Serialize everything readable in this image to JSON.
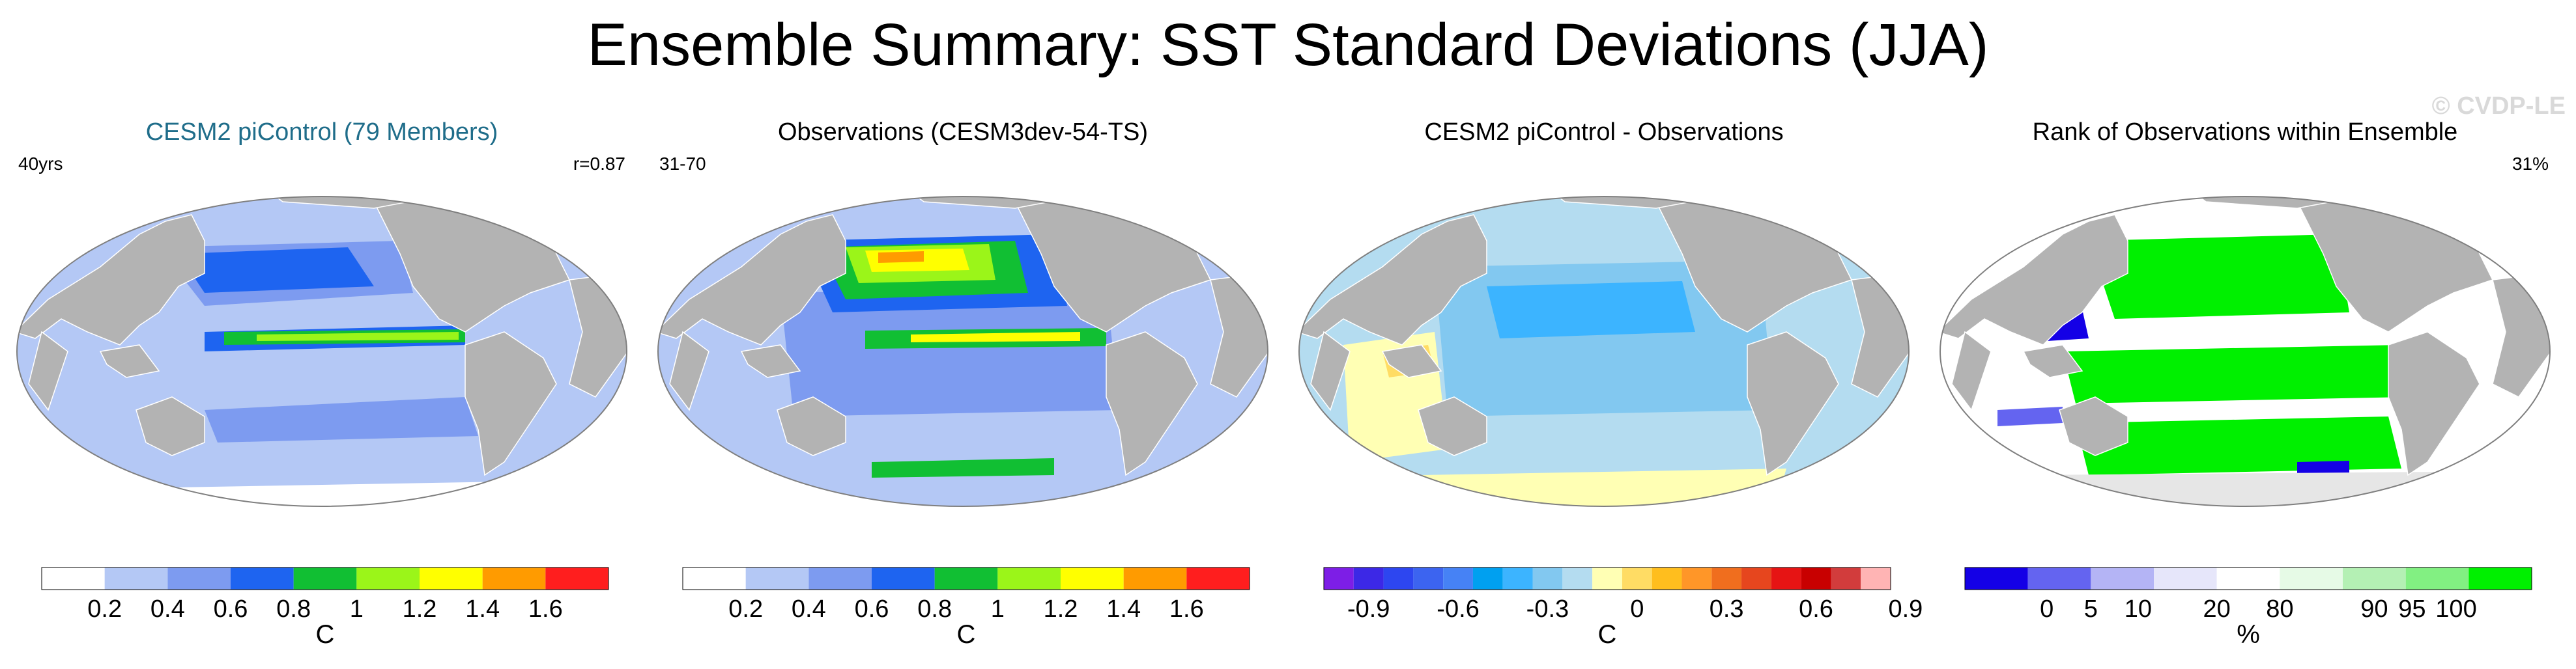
{
  "figure": {
    "title": "Ensemble Summary: SST Standard Deviations (JJA)",
    "watermark": "© CVDP-LE"
  },
  "colors": {
    "land": "#b3b3b3",
    "ocean_outline": "#7f7f7f",
    "title_teal": "#1f6d8a"
  },
  "panels": [
    {
      "id": "ensemble",
      "title": "CESM2 piControl (79 Members)",
      "title_color": "#1f6d8a",
      "left_label": "40yrs",
      "right_label": "r=0.87",
      "field": "std",
      "colorbar": {
        "colors": [
          "#ffffff",
          "#b4c8f5",
          "#7d9bf0",
          "#1e64f0",
          "#11bf33",
          "#9bf519",
          "#ffff00",
          "#ff9b00",
          "#ff1e1e"
        ],
        "labels": [
          "0.2",
          "0.4",
          "0.6",
          "0.8",
          "1",
          "1.2",
          "1.4",
          "1.6"
        ],
        "unit": "C"
      }
    },
    {
      "id": "observations",
      "title": "Observations (CESM3dev-54-TS)",
      "title_color": "#000000",
      "left_label": "31-70",
      "right_label": "",
      "field": "obs",
      "colorbar": {
        "colors": [
          "#ffffff",
          "#b4c8f5",
          "#7d9bf0",
          "#1e64f0",
          "#11bf33",
          "#9bf519",
          "#ffff00",
          "#ff9b00",
          "#ff1e1e"
        ],
        "labels": [
          "0.2",
          "0.4",
          "0.6",
          "0.8",
          "1",
          "1.2",
          "1.4",
          "1.6"
        ],
        "unit": "C"
      }
    },
    {
      "id": "difference",
      "title": "CESM2 piControl - Observations",
      "title_color": "#000000",
      "left_label": "",
      "right_label": "",
      "field": "diff",
      "colorbar": {
        "colors": [
          "#7d1ee6",
          "#3c28e6",
          "#2d46f0",
          "#3c64f0",
          "#4682f5",
          "#00a0f0",
          "#3cb4ff",
          "#82c8f0",
          "#b4dcf0",
          "#ffffb4",
          "#ffdc64",
          "#ffbe1e",
          "#ff9628",
          "#f06e1e",
          "#e6461e",
          "#e61414",
          "#c80000",
          "#d23c3c",
          "#ffb4b4"
        ],
        "labels": [
          "-0.9",
          "-0.6",
          "-0.3",
          "0",
          "0.3",
          "0.6",
          "0.9"
        ],
        "label_positions": [
          1.5,
          4.5,
          7.5,
          10.5,
          13.5,
          16.5,
          19.5
        ],
        "unit": "C"
      }
    },
    {
      "id": "rank",
      "title": "Rank of Observations within Ensemble",
      "title_color": "#000000",
      "left_label": "",
      "right_label": "31%",
      "field": "rank",
      "colorbar": {
        "colors": [
          "#1400e6",
          "#6464f0",
          "#b4b4f5",
          "#e6e6fa",
          "#ffffff",
          "#e6fae6",
          "#b4f0b4",
          "#82f082",
          "#00f000"
        ],
        "labels": [
          "0",
          "5",
          "10",
          "20",
          "80",
          "90",
          "95",
          "100"
        ],
        "label_positions": [
          1.3,
          2.0,
          2.75,
          4.0,
          5.0,
          6.5,
          7.1,
          7.8
        ],
        "unit": "%"
      }
    }
  ]
}
